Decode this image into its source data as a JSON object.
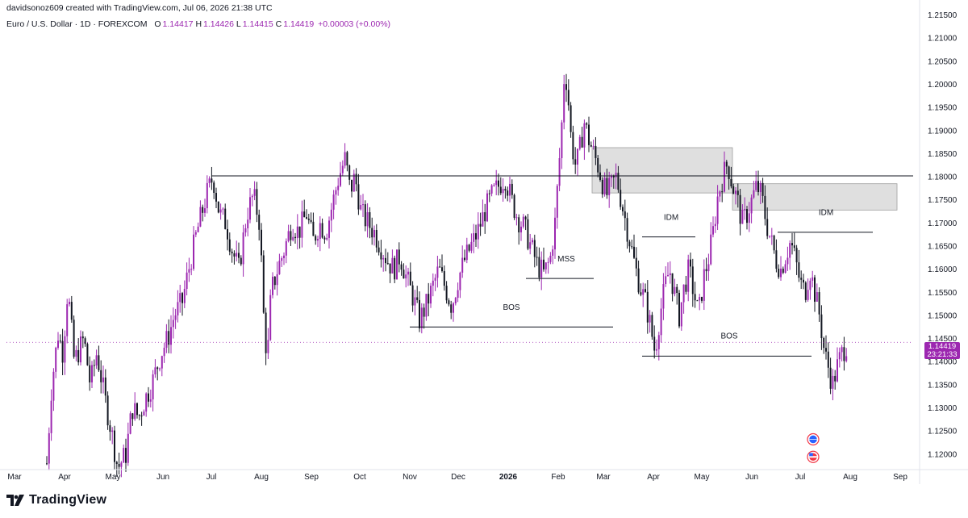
{
  "header": {
    "created_by": "davidsonoz609 created with TradingView.com, Jul 06, 2026 21:38 UTC"
  },
  "legend": {
    "symbol": "Euro / U.S. Dollar · 1D · FOREXCOM",
    "open_label": "O",
    "open": "1.14417",
    "high_label": "H",
    "high": "1.14426",
    "low_label": "L",
    "low": "1.14415",
    "close_label": "C",
    "close": "1.14419",
    "change": "+0.00003 (+0.00%)"
  },
  "price_tag": {
    "price": "1.14419",
    "countdown": "23:21:33"
  },
  "footer": {
    "brand": "TradingView"
  },
  "colors": {
    "bull": "#9c27b0",
    "bear": "#131722",
    "zone": "#d9d9d9",
    "tag": "#9c27b0"
  },
  "chart_data": {
    "type": "candlestick",
    "y_ticks": [
      "1.21500",
      "1.21000",
      "1.20500",
      "1.20000",
      "1.19500",
      "1.19000",
      "1.18500",
      "1.18000",
      "1.17500",
      "1.17000",
      "1.16500",
      "1.16000",
      "1.15500",
      "1.15000",
      "1.14500",
      "1.14000",
      "1.13500",
      "1.13000",
      "1.12500",
      "1.12000"
    ],
    "ylim": [
      1.117,
      1.2165
    ],
    "x_ticks": [
      {
        "label": "Mar",
        "day": -305
      },
      {
        "label": "Apr",
        "day": -274
      },
      {
        "label": "May",
        "day": -244
      },
      {
        "label": "Jun",
        "day": -213
      },
      {
        "label": "Jul",
        "day": -183
      },
      {
        "label": "Aug",
        "day": -152
      },
      {
        "label": "Sep",
        "day": -121
      },
      {
        "label": "Oct",
        "day": -91
      },
      {
        "label": "Nov",
        "day": -60
      },
      {
        "label": "Dec",
        "day": -30
      },
      {
        "label": "2026",
        "day": 1,
        "bold": true
      },
      {
        "label": "Feb",
        "day": 32
      },
      {
        "label": "Mar",
        "day": 60
      },
      {
        "label": "Apr",
        "day": 91
      },
      {
        "label": "May",
        "day": 121
      },
      {
        "label": "Jun",
        "day": 152
      },
      {
        "label": "Jul",
        "day": 182
      },
      {
        "label": "Aug",
        "day": 213
      },
      {
        "label": "Sep",
        "day": 244
      }
    ],
    "xlim_day": [
      -310,
      252
    ],
    "price_path": [
      [
        -285,
        1.118
      ],
      [
        -282,
        1.135
      ],
      [
        -278,
        1.146
      ],
      [
        -275,
        1.142
      ],
      [
        -272,
        1.156
      ],
      [
        -268,
        1.14
      ],
      [
        -262,
        1.145
      ],
      [
        -258,
        1.135
      ],
      [
        -254,
        1.142
      ],
      [
        -249,
        1.132
      ],
      [
        -245,
        1.125
      ],
      [
        -241,
        1.117
      ],
      [
        -236,
        1.12
      ],
      [
        -232,
        1.13
      ],
      [
        -228,
        1.128
      ],
      [
        -224,
        1.132
      ],
      [
        -220,
        1.135
      ],
      [
        -214,
        1.142
      ],
      [
        -210,
        1.145
      ],
      [
        -206,
        1.15
      ],
      [
        -201,
        1.153
      ],
      [
        -197,
        1.16
      ],
      [
        -192,
        1.168
      ],
      [
        -186,
        1.176
      ],
      [
        -182,
        1.18
      ],
      [
        -178,
        1.172
      ],
      [
        -174,
        1.17
      ],
      [
        -170,
        1.164
      ],
      [
        -166,
        1.16
      ],
      [
        -161,
        1.172
      ],
      [
        -157,
        1.176
      ],
      [
        -153,
        1.17
      ],
      [
        -150,
        1.145
      ],
      [
        -148,
        1.142
      ],
      [
        -146,
        1.155
      ],
      [
        -142,
        1.16
      ],
      [
        -138,
        1.164
      ],
      [
        -133,
        1.17
      ],
      [
        -129,
        1.168
      ],
      [
        -124,
        1.172
      ],
      [
        -120,
        1.166
      ],
      [
        -116,
        1.17
      ],
      [
        -112,
        1.168
      ],
      [
        -108,
        1.174
      ],
      [
        -104,
        1.18
      ],
      [
        -100,
        1.184
      ],
      [
        -97,
        1.177
      ],
      [
        -94,
        1.18
      ],
      [
        -90,
        1.172
      ],
      [
        -86,
        1.17
      ],
      [
        -82,
        1.168
      ],
      [
        -78,
        1.165
      ],
      [
        -74,
        1.162
      ],
      [
        -70,
        1.16
      ],
      [
        -66,
        1.163
      ],
      [
        -62,
        1.158
      ],
      [
        -58,
        1.154
      ],
      [
        -54,
        1.149
      ],
      [
        -50,
        1.152
      ],
      [
        -46,
        1.156
      ],
      [
        -42,
        1.16
      ],
      [
        -38,
        1.156
      ],
      [
        -34,
        1.152
      ],
      [
        -30,
        1.158
      ],
      [
        -26,
        1.162
      ],
      [
        -22,
        1.165
      ],
      [
        -18,
        1.168
      ],
      [
        -13,
        1.173
      ],
      [
        -9,
        1.176
      ],
      [
        -5,
        1.178
      ],
      [
        -1,
        1.18
      ],
      [
        3,
        1.175
      ],
      [
        7,
        1.171
      ],
      [
        11,
        1.169
      ],
      [
        15,
        1.165
      ],
      [
        19,
        1.161
      ],
      [
        23,
        1.159
      ],
      [
        27,
        1.162
      ],
      [
        30,
        1.17
      ],
      [
        32,
        1.18
      ],
      [
        34,
        1.19
      ],
      [
        36,
        1.204
      ],
      [
        38,
        1.198
      ],
      [
        40,
        1.188
      ],
      [
        43,
        1.182
      ],
      [
        46,
        1.187
      ],
      [
        48,
        1.192
      ],
      [
        51,
        1.188
      ],
      [
        54,
        1.185
      ],
      [
        57,
        1.182
      ],
      [
        60,
        1.178
      ],
      [
        62,
        1.176
      ],
      [
        65,
        1.178
      ],
      [
        68,
        1.18
      ],
      [
        71,
        1.175
      ],
      [
        74,
        1.17
      ],
      [
        77,
        1.165
      ],
      [
        80,
        1.16
      ],
      [
        83,
        1.156
      ],
      [
        86,
        1.153
      ],
      [
        89,
        1.148
      ],
      [
        92,
        1.142
      ],
      [
        95,
        1.15
      ],
      [
        98,
        1.156
      ],
      [
        101,
        1.16
      ],
      [
        104,
        1.155
      ],
      [
        107,
        1.15
      ],
      [
        110,
        1.156
      ],
      [
        113,
        1.16
      ],
      [
        116,
        1.155
      ],
      [
        119,
        1.15
      ],
      [
        122,
        1.158
      ],
      [
        125,
        1.162
      ],
      [
        128,
        1.168
      ],
      [
        131,
        1.176
      ],
      [
        134,
        1.18
      ],
      [
        137,
        1.183
      ],
      [
        140,
        1.178
      ],
      [
        143,
        1.175
      ],
      [
        146,
        1.17
      ],
      [
        149,
        1.172
      ],
      [
        152,
        1.175
      ],
      [
        155,
        1.178
      ],
      [
        158,
        1.176
      ],
      [
        161,
        1.17
      ],
      [
        164,
        1.166
      ],
      [
        167,
        1.162
      ],
      [
        170,
        1.16
      ],
      [
        173,
        1.163
      ],
      [
        176,
        1.166
      ],
      [
        179,
        1.162
      ],
      [
        182,
        1.157
      ],
      [
        185,
        1.155
      ],
      [
        188,
        1.16
      ],
      [
        191,
        1.155
      ],
      [
        194,
        1.15
      ],
      [
        197,
        1.142
      ],
      [
        200,
        1.138
      ],
      [
        202,
        1.135
      ],
      [
        205,
        1.139
      ],
      [
        208,
        1.142
      ],
      [
        211,
        1.144
      ]
    ],
    "horizontal_lines": [
      {
        "day_from": -183,
        "day_to": 252,
        "price": 1.1802
      },
      {
        "day_from": -60,
        "day_to": 66,
        "price": 1.1475
      },
      {
        "day_from": 12,
        "day_to": 54,
        "price": 1.158
      },
      {
        "day_from": 84,
        "day_to": 117,
        "price": 1.167
      },
      {
        "day_from": 84,
        "day_to": 189,
        "price": 1.1412
      },
      {
        "day_from": 168,
        "day_to": 227,
        "price": 1.168
      },
      {
        "day_from": -310,
        "day_to": 252,
        "price": 1.14419,
        "dotted": true
      }
    ],
    "zones": [
      {
        "day_from": 53,
        "day_to": 140,
        "price_top": 1.1863,
        "price_bottom": 1.1765
      },
      {
        "day_from": 140,
        "day_to": 242,
        "price_top": 1.1785,
        "price_bottom": 1.1728
      }
    ],
    "annotations": [
      {
        "text": "MSS",
        "day": 37,
        "price": 1.1617
      },
      {
        "text": "BOS",
        "day": 3,
        "price": 1.1512
      },
      {
        "text": "IDM",
        "day": 102,
        "price": 1.1707
      },
      {
        "text": "IDM",
        "day": 198,
        "price": 1.1717
      },
      {
        "text": "BOS",
        "day": 138,
        "price": 1.145
      }
    ],
    "events": [
      {
        "day": 190,
        "price": 1.1232,
        "icon": "globe-icon"
      },
      {
        "day": 190,
        "price": 1.1194,
        "icon": "us-flag-icon"
      }
    ]
  }
}
